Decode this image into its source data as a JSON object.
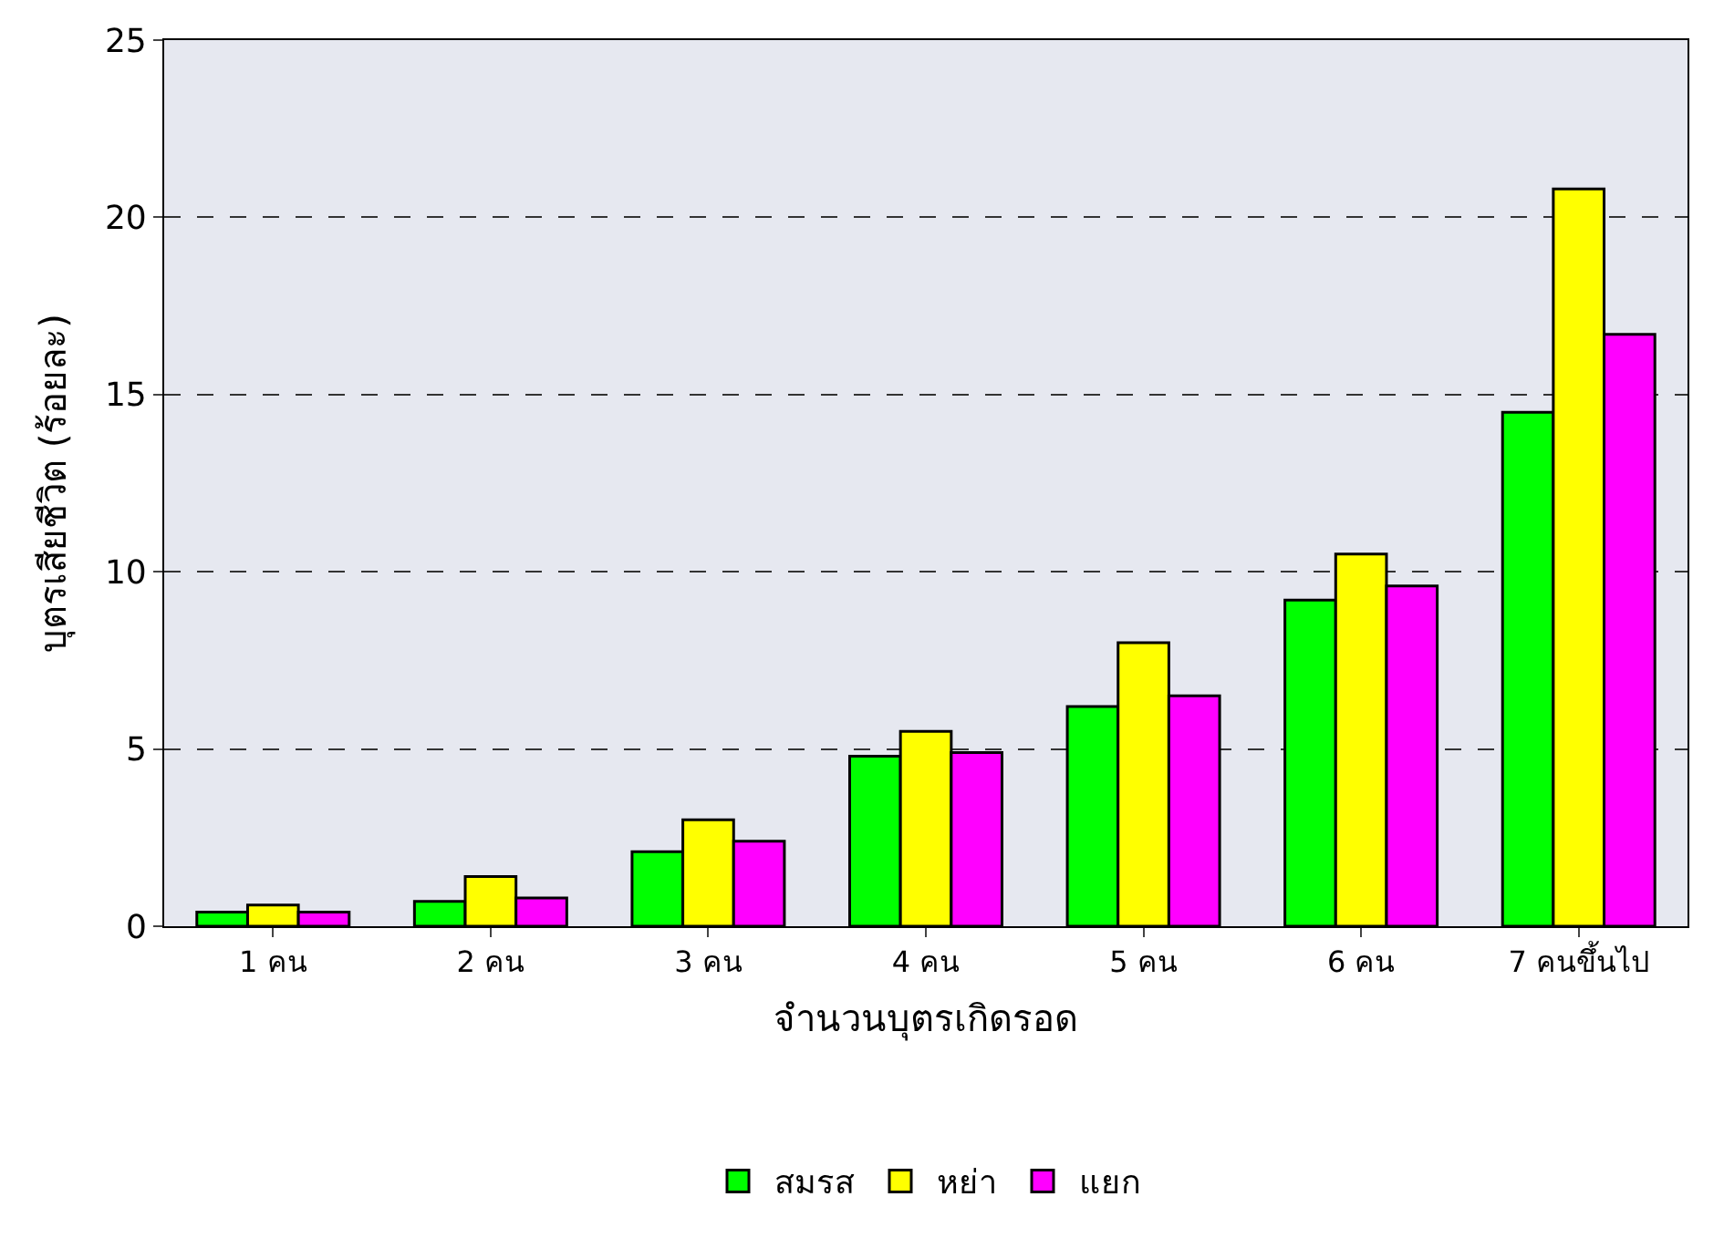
{
  "chart_data": {
    "type": "bar",
    "xlabel": "จำนวนบุตรเกิดรอด",
    "ylabel": "บุตรเสียชีวิต (ร้อยละ)",
    "categories": [
      "1 คน",
      "2 คน",
      "3 คน",
      "4 คน",
      "5 คน",
      "6 คน",
      "7 คนขึ้นไป"
    ],
    "series": [
      {
        "name": "สมรส",
        "color": "#00ff00",
        "values": [
          0.4,
          0.7,
          2.1,
          4.8,
          6.2,
          9.2,
          14.5
        ]
      },
      {
        "name": "หย่า",
        "color": "#ffff00",
        "values": [
          0.6,
          1.4,
          3.0,
          5.5,
          8.0,
          10.5,
          20.8
        ]
      },
      {
        "name": "แยก",
        "color": "#ff00ff",
        "values": [
          0.4,
          0.8,
          2.4,
          4.9,
          6.5,
          9.6,
          16.7
        ]
      }
    ],
    "ylim": [
      0,
      25
    ],
    "yticks": [
      0,
      5,
      10,
      15,
      20,
      25
    ],
    "grid": "y",
    "line_style": "dashed",
    "legend": "bottom"
  }
}
